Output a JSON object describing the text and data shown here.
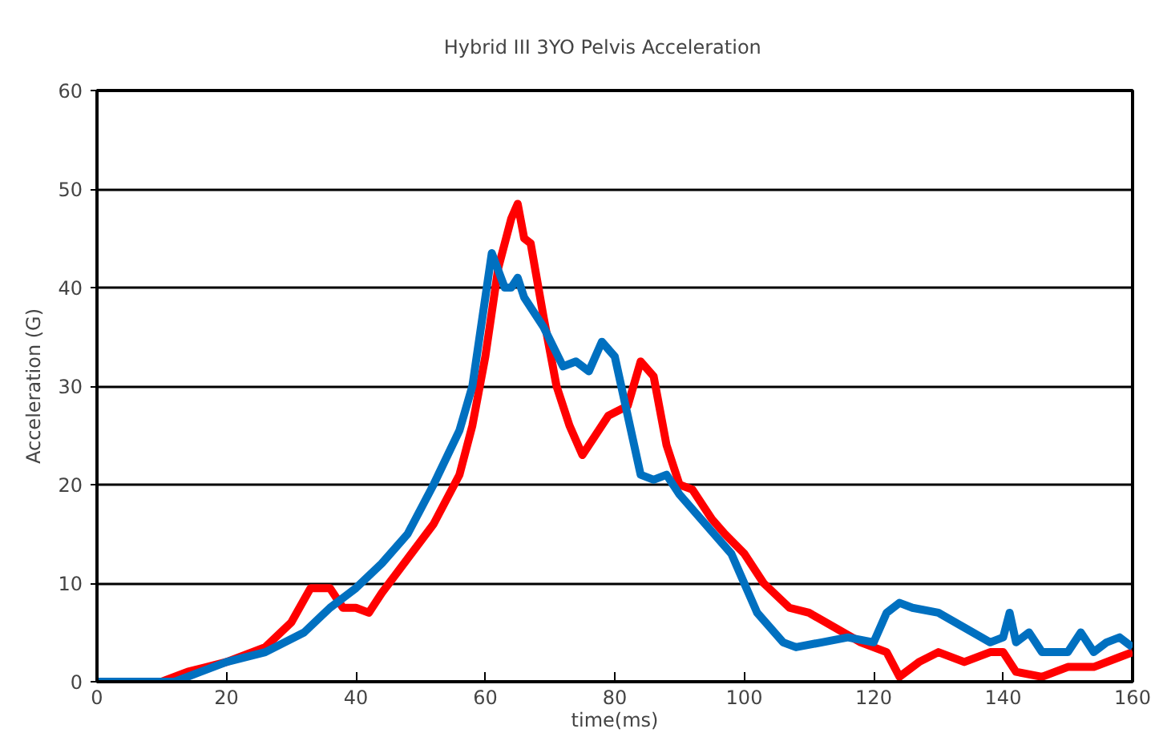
{
  "chart_data": {
    "type": "line",
    "title": "Hybrid III 3YO     Pelvis Acceleration",
    "xlabel": "time(ms)",
    "ylabel": "Acceleration (G)",
    "xlim": [
      0,
      160
    ],
    "xticks": [
      0,
      20,
      40,
      60,
      80,
      100,
      120,
      140,
      160
    ],
    "ylim": [
      0,
      60
    ],
    "yticks": [
      0,
      10,
      20,
      30,
      40,
      50,
      60
    ],
    "grid": "y",
    "line_style": "solid",
    "series": [
      {
        "color": "#ff0000",
        "x": [
          0,
          10,
          14,
          20,
          26,
          30,
          33,
          36,
          38,
          40,
          42,
          44,
          48,
          52,
          56,
          58,
          60,
          62,
          64,
          65,
          66,
          67,
          69,
          71,
          73,
          75,
          77,
          79,
          82,
          84,
          86,
          88,
          90,
          92,
          95,
          97,
          100,
          103,
          107,
          110,
          114,
          118,
          122,
          124,
          127,
          130,
          134,
          138,
          140,
          142,
          146,
          150,
          154,
          158,
          160
        ],
        "values": [
          0,
          0,
          1,
          2,
          3.5,
          6,
          9.5,
          9.5,
          7.5,
          7.5,
          7,
          9,
          12.5,
          16,
          21,
          26,
          33,
          42,
          47,
          48.5,
          45,
          44.5,
          37,
          30,
          26,
          23,
          25,
          27,
          28,
          32.5,
          31,
          24,
          20,
          19.5,
          16.5,
          15,
          13,
          10,
          7.5,
          7,
          5.5,
          4,
          3,
          0.5,
          2,
          3,
          2,
          3,
          3,
          1,
          0.5,
          1.5,
          1.5,
          2.5,
          3
        ]
      },
      {
        "color": "#0070c0",
        "x": [
          0,
          12,
          16,
          20,
          26,
          32,
          36,
          40,
          44,
          48,
          52,
          56,
          58,
          60,
          61,
          63,
          64,
          65,
          66,
          69,
          72,
          74,
          76,
          78,
          80,
          82,
          84,
          86,
          88,
          90,
          94,
          98,
          100,
          102,
          106,
          108,
          112,
          116,
          120,
          122,
          124,
          126,
          130,
          134,
          138,
          140,
          141,
          142,
          144,
          146,
          150,
          152,
          154,
          156,
          158,
          160
        ],
        "values": [
          0,
          0,
          1,
          2,
          3,
          5,
          7.5,
          9.5,
          12,
          15,
          20,
          25.5,
          30,
          39,
          43.5,
          40,
          40,
          41,
          39,
          36,
          32,
          32.5,
          31.5,
          34.5,
          33,
          27,
          21,
          20.5,
          21,
          19,
          16,
          13,
          10,
          7,
          4,
          3.5,
          4,
          4.5,
          4,
          7,
          8,
          7.5,
          7,
          5.5,
          4,
          4.5,
          7,
          4,
          5,
          3,
          3,
          5,
          3,
          4,
          4.5,
          3.5
        ]
      }
    ]
  }
}
